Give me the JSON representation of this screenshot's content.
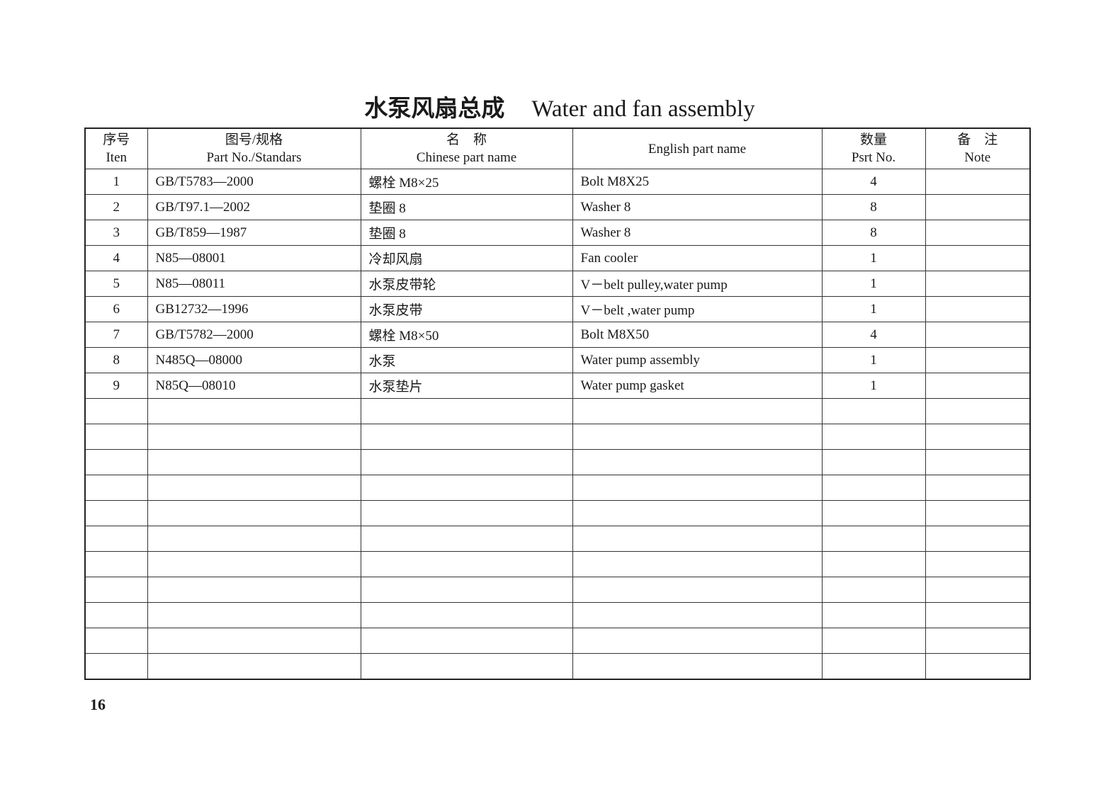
{
  "title": {
    "chinese": "水泵风扇总成",
    "english": "Water and fan assembly"
  },
  "headers": [
    {
      "cn": "序号",
      "en": "Iten"
    },
    {
      "cn": "图号/规格",
      "en": "Part No./Standars"
    },
    {
      "cn": "名　称",
      "en": "Chinese part name"
    },
    {
      "cn": "",
      "en": "English part name"
    },
    {
      "cn": "数量",
      "en": "Psrt No."
    },
    {
      "cn": "备　注",
      "en": "Note"
    }
  ],
  "rows": [
    {
      "item": "1",
      "part_no": "GB/T5783—2000",
      "cn_name": "螺栓 M8×25",
      "en_name": "Bolt M8X25",
      "qty": "4",
      "note": ""
    },
    {
      "item": "2",
      "part_no": "GB/T97.1—2002",
      "cn_name": "垫圈 8",
      "en_name": "Washer 8",
      "qty": "8",
      "note": ""
    },
    {
      "item": "3",
      "part_no": "GB/T859—1987",
      "cn_name": "垫圈 8",
      "en_name": "Washer 8",
      "qty": "8",
      "note": ""
    },
    {
      "item": "4",
      "part_no": "N85—08001",
      "cn_name": "冷却风扇",
      "en_name": "Fan cooler",
      "qty": "1",
      "note": ""
    },
    {
      "item": "5",
      "part_no": "N85—08011",
      "cn_name": "水泵皮带轮",
      "en_name": "V－belt pulley,water pump",
      "qty": "1",
      "note": ""
    },
    {
      "item": "6",
      "part_no": "GB12732—1996",
      "cn_name": "水泵皮带",
      "en_name": "V－belt ,water pump",
      "qty": "1",
      "note": ""
    },
    {
      "item": "7",
      "part_no": "GB/T5782—2000",
      "cn_name": "螺栓 M8×50",
      "en_name": "Bolt M8X50",
      "qty": "4",
      "note": ""
    },
    {
      "item": "8",
      "part_no": "N485Q—08000",
      "cn_name": "水泵",
      "en_name": "Water pump assembly",
      "qty": "1",
      "note": ""
    },
    {
      "item": "9",
      "part_no": "N85Q—08010",
      "cn_name": "水泵垫片",
      "en_name": "Water pump gasket",
      "qty": "1",
      "note": ""
    }
  ],
  "page_number": "16"
}
